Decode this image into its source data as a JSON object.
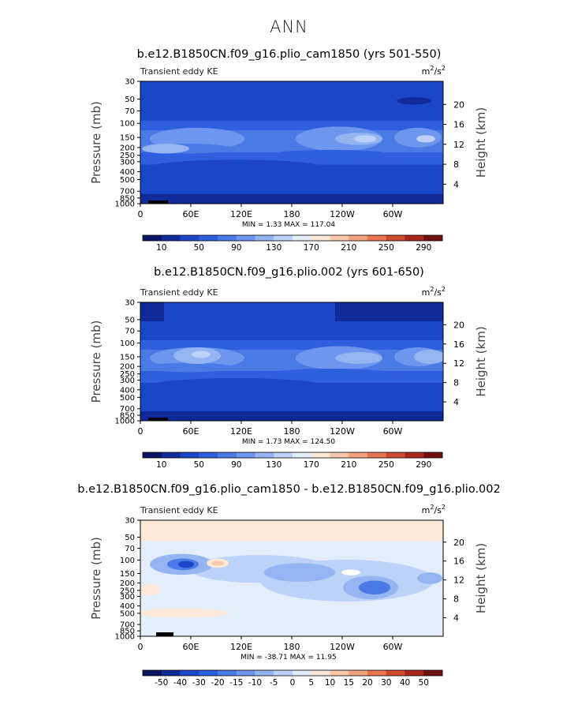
{
  "page": {
    "title": "ANN"
  },
  "panels": [
    {
      "title": "b.e12.B1850CN.f09_g16.plio_cam1850 (yrs 501-550)",
      "left_label": "Transient eddy KE",
      "units_base": "m",
      "units_sup1": "2",
      "units_mid": "/s",
      "units_sup2": "2",
      "stats": "MIN =     1.33  MAX =  117.04",
      "colorbar_labels": [
        "10",
        "50",
        "90",
        "130",
        "170",
        "210",
        "250",
        "290"
      ],
      "kind": "abs"
    },
    {
      "title": "b.e12.B1850CN.f09_g16.plio.002 (yrs 601-650)",
      "left_label": "Transient eddy KE",
      "units_base": "m",
      "units_sup1": "2",
      "units_mid": "/s",
      "units_sup2": "2",
      "stats": "MIN =     1.73  MAX =  124.50",
      "colorbar_labels": [
        "10",
        "50",
        "90",
        "130",
        "170",
        "210",
        "250",
        "290"
      ],
      "kind": "abs"
    },
    {
      "title": "b.e12.B1850CN.f09_g16.plio_cam1850 - b.e12.B1850CN.f09_g16.plio.002",
      "left_label": "Transient eddy KE",
      "units_base": "m",
      "units_sup1": "2",
      "units_mid": "/s",
      "units_sup2": "2",
      "stats": "MIN =  -38.71  MAX =    11.95",
      "colorbar_labels": [
        "-50",
        "-40",
        "-30",
        "-20",
        "-15",
        "-10",
        "-5",
        "0",
        "5",
        "10",
        "15",
        "20",
        "30",
        "40",
        "50"
      ],
      "kind": "diff"
    }
  ],
  "chart_data": [
    {
      "type": "heatmap",
      "title": "b.e12.B1850CN.f09_g16.plio_cam1850 (yrs 501-550)",
      "xlabel": "",
      "ylabel": "Pressure (mb)",
      "ylabel_right": "Height (km)",
      "x_ticks": [
        "0",
        "60E",
        "120E",
        "180",
        "120W",
        "60W"
      ],
      "y_ticks": [
        "30",
        "50",
        "70",
        "100",
        "150",
        "200",
        "250",
        "300",
        "400",
        "500",
        "700",
        "850",
        "1000"
      ],
      "y_ticks_right": [
        "4",
        "8",
        "12",
        "16",
        "20"
      ],
      "ylim": [
        1000,
        30
      ],
      "y_scale": "log",
      "levels": [
        10,
        30,
        50,
        70,
        90,
        110,
        130,
        150,
        170,
        190,
        210,
        230,
        250,
        270,
        290
      ],
      "min": 1.33,
      "max": 117.04,
      "colors": [
        "#0a1462",
        "#102a9a",
        "#1c46c8",
        "#2e5fde",
        "#4a7ae6",
        "#6e96ee",
        "#94b4f2",
        "#bcd2f8",
        "#e3eefc",
        "#fce8d8",
        "#f8c8ac",
        "#f2a27e",
        "#e87452",
        "#d04a30",
        "#a8261c",
        "#701010"
      ]
    },
    {
      "type": "heatmap",
      "title": "b.e12.B1850CN.f09_g16.plio.002 (yrs 601-650)",
      "xlabel": "",
      "ylabel": "Pressure (mb)",
      "ylabel_right": "Height (km)",
      "x_ticks": [
        "0",
        "60E",
        "120E",
        "180",
        "120W",
        "60W"
      ],
      "y_ticks": [
        "30",
        "50",
        "70",
        "100",
        "150",
        "200",
        "250",
        "300",
        "400",
        "500",
        "700",
        "850",
        "1000"
      ],
      "y_ticks_right": [
        "4",
        "8",
        "12",
        "16",
        "20"
      ],
      "ylim": [
        1000,
        30
      ],
      "y_scale": "log",
      "levels": [
        10,
        30,
        50,
        70,
        90,
        110,
        130,
        150,
        170,
        190,
        210,
        230,
        250,
        270,
        290
      ],
      "min": 1.73,
      "max": 124.5,
      "colors": [
        "#0a1462",
        "#102a9a",
        "#1c46c8",
        "#2e5fde",
        "#4a7ae6",
        "#6e96ee",
        "#94b4f2",
        "#bcd2f8",
        "#e3eefc",
        "#fce8d8",
        "#f8c8ac",
        "#f2a27e",
        "#e87452",
        "#d04a30",
        "#a8261c",
        "#701010"
      ]
    },
    {
      "type": "heatmap",
      "title": "b.e12.B1850CN.f09_g16.plio_cam1850 - b.e12.B1850CN.f09_g16.plio.002",
      "xlabel": "",
      "ylabel": "Pressure (mb)",
      "ylabel_right": "Height (km)",
      "x_ticks": [
        "0",
        "60E",
        "120E",
        "180",
        "120W",
        "60W"
      ],
      "y_ticks": [
        "30",
        "50",
        "70",
        "100",
        "150",
        "200",
        "250",
        "300",
        "400",
        "500",
        "700",
        "850",
        "1000"
      ],
      "y_ticks_right": [
        "4",
        "8",
        "12",
        "16",
        "20"
      ],
      "ylim": [
        1000,
        30
      ],
      "y_scale": "log",
      "levels": [
        -50,
        -40,
        -30,
        -20,
        -15,
        -10,
        -5,
        0,
        5,
        10,
        15,
        20,
        30,
        40,
        50
      ],
      "min": -38.71,
      "max": 11.95,
      "colors": [
        "#0a1462",
        "#102a9a",
        "#1c46c8",
        "#2e5fde",
        "#4a7ae6",
        "#6e96ee",
        "#94b4f2",
        "#bcd2f8",
        "#e3eefc",
        "#fce8d8",
        "#f8c8ac",
        "#f2a27e",
        "#e87452",
        "#d04a30",
        "#a8261c",
        "#701010"
      ]
    }
  ]
}
